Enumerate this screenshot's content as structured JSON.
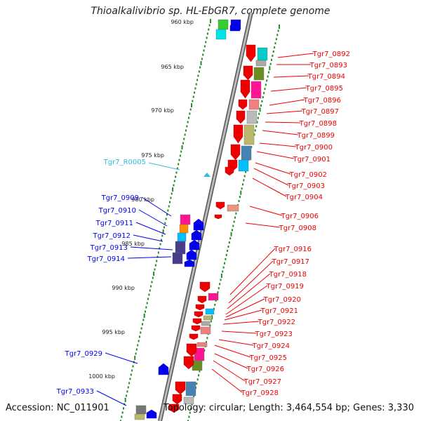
{
  "title": "Thioalkalivibrio sp. HL-EbGR7, complete genome",
  "footer": {
    "accession": "Accession: NC_011901",
    "summary": "Topology: circular; Length: 3,464,554 bp; Genes: 3,330"
  },
  "ticks": [
    "960 kbp",
    "965 kbp",
    "970 kbp",
    "975 kbp",
    "980 kbp",
    "985 kbp",
    "990 kbp",
    "995 kbp",
    "1000 kbp"
  ],
  "colors": {
    "forward_strand": "#0000ee",
    "reverse_strand": "#ee0000",
    "rna": "#33bbdd",
    "backbone": "#808080",
    "tick_line": "#228b22"
  },
  "labels_forward": [
    "Tgr7_0909",
    "Tgr7_0910",
    "Tgr7_0911",
    "Tgr7_0912",
    "Tgr7_0913",
    "Tgr7_0914",
    "Tgr7_0929",
    "Tgr7_0933"
  ],
  "labels_rna": [
    "Tgr7_R0005"
  ],
  "labels_reverse": [
    "Tgr7_0892",
    "Tgr7_0893",
    "Tgr7_0894",
    "Tgr7_0895",
    "Tgr7_0896",
    "Tgr7_0897",
    "Tgr7_0898",
    "Tgr7_0899",
    "Tgr7_0900",
    "Tgr7_0901",
    "Tgr7_0902",
    "Tgr7_0903",
    "Tgr7_0904",
    "Tgr7_0906",
    "Tgr7_0908",
    "Tgr7_0916",
    "Tgr7_0917",
    "Tgr7_0918",
    "Tgr7_0919",
    "Tgr7_0920",
    "Tgr7_0921",
    "Tgr7_0922",
    "Tgr7_0923",
    "Tgr7_0924",
    "Tgr7_0925",
    "Tgr7_0926",
    "Tgr7_0927",
    "Tgr7_0928"
  ]
}
